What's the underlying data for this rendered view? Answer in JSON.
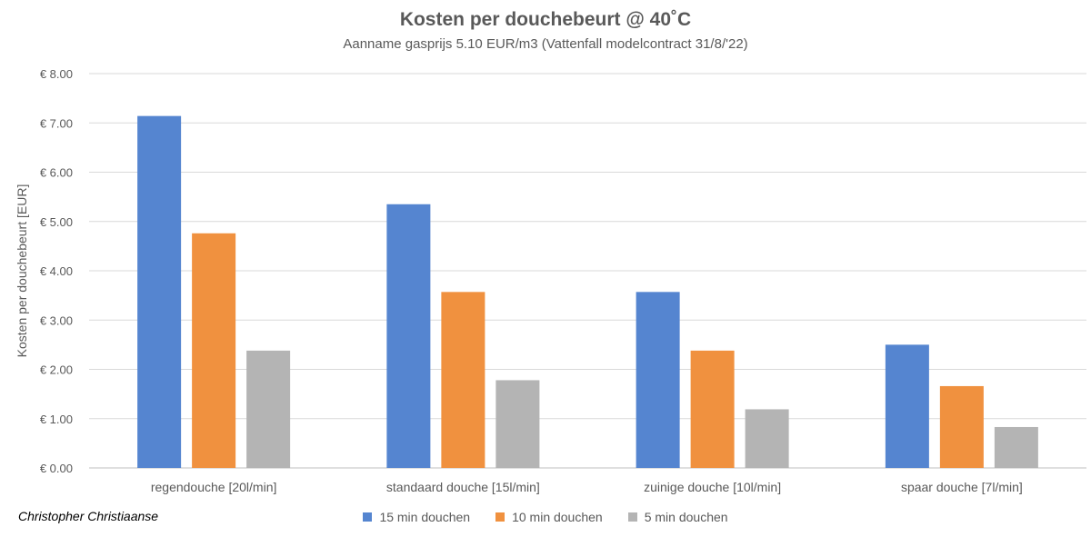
{
  "chart_data": {
    "type": "bar",
    "title": "Kosten per douchebeurt @ 40˚C",
    "subtitle": "Aanname gasprijs 5.10 EUR/m3 (Vattenfall modelcontract 31/8/'22)",
    "xlabel": "",
    "ylabel": "Kosten per douchebeurt [EUR]",
    "ylim": [
      0,
      8
    ],
    "yticks": [
      "€ 0.00",
      "€ 1.00",
      "€ 2.00",
      "€ 3.00",
      "€ 4.00",
      "€ 5.00",
      "€ 6.00",
      "€ 7.00",
      "€ 8.00"
    ],
    "categories": [
      "regendouche [20l/min]",
      "standaard douche [15l/min]",
      "zuinige douche [10l/min]",
      "spaar douche [7l/min]"
    ],
    "series": [
      {
        "name": "15 min douchen",
        "color": "#5585D0",
        "values": [
          7.14,
          5.35,
          3.57,
          2.5
        ]
      },
      {
        "name": "10 min douchen",
        "color": "#F0913F",
        "values": [
          4.76,
          3.57,
          2.38,
          1.66
        ]
      },
      {
        "name": "5 min douchen",
        "color": "#B4B4B4",
        "values": [
          2.38,
          1.78,
          1.19,
          0.83
        ]
      }
    ],
    "grid": true,
    "legend_position": "bottom"
  },
  "footer": {
    "author": "Christopher Christiaanse"
  }
}
